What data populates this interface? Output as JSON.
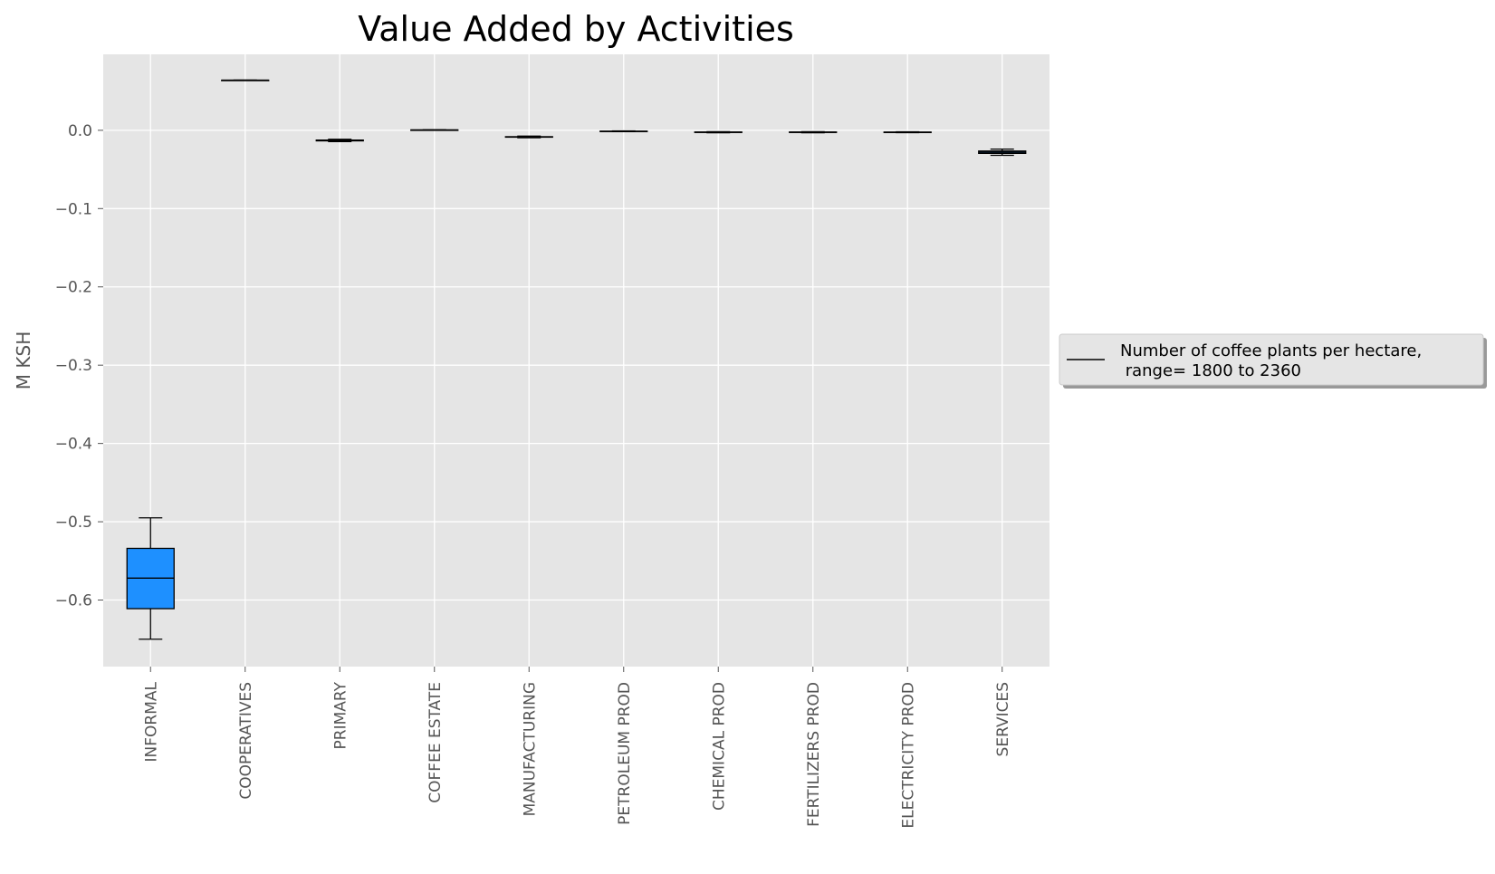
{
  "chart_data": {
    "type": "box",
    "title": "Value Added by Activities",
    "xlabel": "",
    "ylabel": "M KSH",
    "ylim": [
      -0.685,
      0.097
    ],
    "yticks": [
      0.0,
      -0.1,
      -0.2,
      -0.3,
      -0.4,
      -0.5,
      -0.6
    ],
    "ytick_labels": [
      "0.0",
      "−0.1",
      "−0.2",
      "−0.3",
      "−0.4",
      "−0.5",
      "−0.6"
    ],
    "grid": true,
    "categories": [
      "INFORMAL",
      "COOPERATIVES",
      "PRIMARY",
      "COFFEE ESTATE",
      "MANUFACTURING",
      "PETROLEUM PROD",
      "CHEMICAL PROD",
      "FERTILIZERS PROD",
      "ELECTRICITY PROD",
      "SERVICES"
    ],
    "boxes": [
      {
        "whisker_low": -0.65,
        "q1": -0.611,
        "median": -0.572,
        "q3": -0.534,
        "whisker_high": -0.495
      },
      {
        "whisker_low": 0.064,
        "q1": 0.064,
        "median": 0.064,
        "q3": 0.064,
        "whisker_high": 0.064
      },
      {
        "whisker_low": -0.0145,
        "q1": -0.0135,
        "median": -0.013,
        "q3": -0.0125,
        "whisker_high": -0.0115
      },
      {
        "whisker_low": 0.0001,
        "q1": 0.0003,
        "median": 0.0004,
        "q3": 0.0005,
        "whisker_high": 0.0007
      },
      {
        "whisker_low": -0.0095,
        "q1": -0.0088,
        "median": -0.0085,
        "q3": -0.0082,
        "whisker_high": -0.0075
      },
      {
        "whisker_low": -0.0018,
        "q1": -0.0015,
        "median": -0.0013,
        "q3": -0.0011,
        "whisker_high": -0.0008
      },
      {
        "whisker_low": -0.0032,
        "q1": -0.0028,
        "median": -0.0025,
        "q3": -0.0022,
        "whisker_high": -0.0018
      },
      {
        "whisker_low": -0.0032,
        "q1": -0.0028,
        "median": -0.0025,
        "q3": -0.0022,
        "whisker_high": -0.0018
      },
      {
        "whisker_low": -0.003,
        "q1": -0.0027,
        "median": -0.0025,
        "q3": -0.0023,
        "whisker_high": -0.002
      },
      {
        "whisker_low": -0.032,
        "q1": -0.0295,
        "median": -0.028,
        "q3": -0.0265,
        "whisker_high": -0.024
      }
    ],
    "legend": {
      "placement": "right",
      "entries": [
        "Number of coffee plants per hectare,",
        " range= 1800 to 2360"
      ]
    },
    "colors": {
      "box_fill": "#1e90ff",
      "plot_background": "#e5e5e5",
      "grid": "#ffffff",
      "line": "#000000"
    }
  }
}
